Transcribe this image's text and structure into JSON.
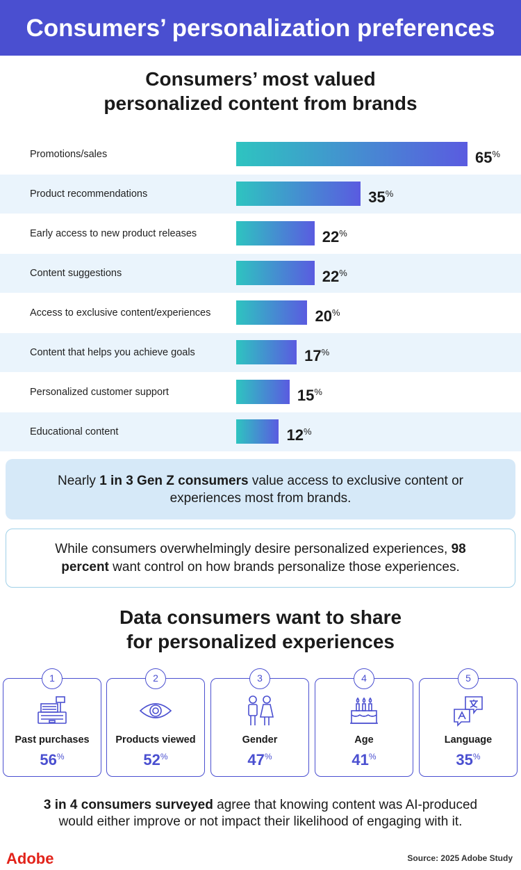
{
  "header": {
    "title": "Consumers’ personalization preferences"
  },
  "chart_title_lines": [
    "Consumers’ most valued",
    "personalized content from brands"
  ],
  "chart_data": {
    "type": "bar",
    "orientation": "horizontal",
    "title": "Consumers’ most valued personalized content from brands",
    "categories": [
      "Promotions/sales",
      "Product recommendations",
      "Early access to new product releases",
      "Content suggestions",
      "Access to exclusive content/experiences",
      "Content that helps you achieve goals",
      "Personalized customer support",
      "Educational content"
    ],
    "values": [
      65,
      35,
      22,
      22,
      20,
      17,
      15,
      12
    ],
    "unit": "%",
    "xlim": [
      0,
      65
    ]
  },
  "callout1": {
    "pre": "Nearly ",
    "bold": "1 in 3 Gen Z consumers",
    "post": " value access to exclusive content or experiences most from brands."
  },
  "callout2": {
    "pre": "While consumers overwhelmingly desire personalized experiences, ",
    "bold": "98 percent",
    "post": " want control on how brands personalize those experiences."
  },
  "section_title_lines": [
    "Data consumers want to share",
    "for personalized experiences"
  ],
  "data_share": [
    {
      "rank": "1",
      "label": "Past purchases",
      "value": "56",
      "unit": "%",
      "icon": "cash-register-icon"
    },
    {
      "rank": "2",
      "label": "Products viewed",
      "value": "52",
      "unit": "%",
      "icon": "eye-icon"
    },
    {
      "rank": "3",
      "label": "Gender",
      "value": "47",
      "unit": "%",
      "icon": "gender-icon"
    },
    {
      "rank": "4",
      "label": "Age",
      "value": "41",
      "unit": "%",
      "icon": "birthday-cake-icon"
    },
    {
      "rank": "5",
      "label": "Language",
      "value": "35",
      "unit": "%",
      "icon": "translate-icon"
    }
  ],
  "footnote": {
    "bold": "3 in 4 consumers surveyed",
    "post_line1": " agree that knowing content was AI-produced",
    "line2": "would either improve or not impact their likelihood of engaging with it."
  },
  "footer": {
    "logo": "Adobe",
    "source": "Source: 2025 Adobe Study"
  },
  "colors": {
    "accent": "#4a4fd0",
    "bar_start": "#2ec4c0",
    "bar_end": "#5a5be0",
    "callout_bg": "#d6e9f8",
    "alt_row": "#eaf4fc",
    "adobe_red": "#e2231a"
  }
}
